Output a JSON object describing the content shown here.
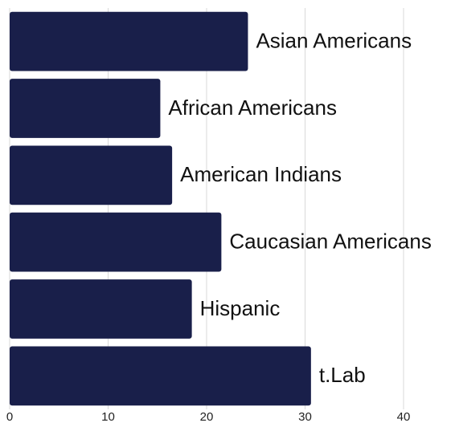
{
  "chart_data": {
    "type": "bar",
    "orientation": "horizontal",
    "categories": [
      "Asian Americans",
      "African Americans",
      "American Indians",
      "Caucasian Americans",
      "Hispanic",
      "t.Lab"
    ],
    "values": [
      24.2,
      15.3,
      16.5,
      21.5,
      18.5,
      30.6
    ],
    "xlim": [
      0,
      44
    ],
    "xticks": [
      0,
      10,
      20,
      30,
      40
    ],
    "grid": true,
    "bar_color": "#191f4a",
    "title": "",
    "xlabel": "",
    "ylabel": ""
  }
}
